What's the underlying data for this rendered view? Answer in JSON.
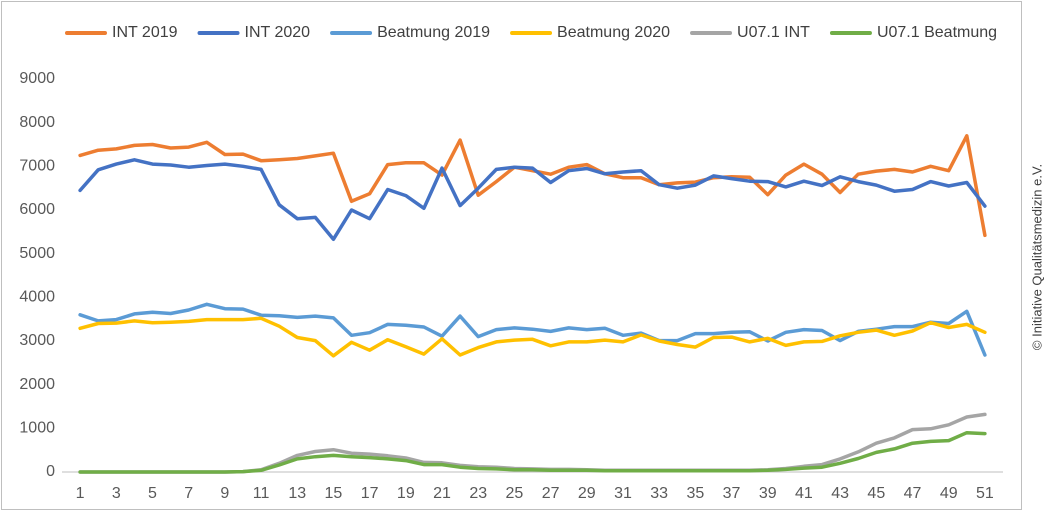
{
  "chart_data": {
    "type": "line",
    "annotation": "© Initiative Qualitätsmedizin e.V.",
    "x": [
      1,
      2,
      3,
      4,
      5,
      6,
      7,
      8,
      9,
      10,
      11,
      12,
      13,
      14,
      15,
      16,
      17,
      18,
      19,
      20,
      21,
      22,
      23,
      24,
      25,
      26,
      27,
      28,
      29,
      30,
      31,
      32,
      33,
      34,
      35,
      36,
      37,
      38,
      39,
      40,
      41,
      42,
      43,
      44,
      45,
      46,
      47,
      48,
      49,
      50,
      51
    ],
    "xlim": [
      0,
      52
    ],
    "xticks": [
      1,
      3,
      5,
      7,
      9,
      11,
      13,
      15,
      17,
      19,
      21,
      23,
      25,
      27,
      29,
      31,
      33,
      35,
      37,
      39,
      41,
      43,
      45,
      47,
      49,
      51
    ],
    "ylim": [
      0,
      9000
    ],
    "yticks": [
      0,
      1000,
      2000,
      3000,
      4000,
      5000,
      6000,
      7000,
      8000,
      9000
    ],
    "grid": false,
    "legend": "top",
    "series": [
      {
        "name": "INT 2019",
        "color": "#ED7D31",
        "values": [
          7250,
          7370,
          7400,
          7480,
          7500,
          7420,
          7440,
          7550,
          7270,
          7280,
          7130,
          7150,
          7180,
          7240,
          7300,
          6200,
          6370,
          7040,
          7080,
          7080,
          6800,
          7600,
          6340,
          6650,
          6980,
          6900,
          6820,
          6980,
          7040,
          6830,
          6740,
          6740,
          6580,
          6620,
          6640,
          6740,
          6760,
          6750,
          6350,
          6800,
          7050,
          6820,
          6400,
          6820,
          6890,
          6930,
          6870,
          7000,
          6900,
          7700,
          5420
        ]
      },
      {
        "name": "INT 2020",
        "color": "#4472C4",
        "values": [
          6450,
          6920,
          7050,
          7150,
          7050,
          7030,
          6980,
          7020,
          7050,
          7000,
          6930,
          6120,
          5800,
          5830,
          5330,
          6000,
          5800,
          6470,
          6330,
          6040,
          6960,
          6100,
          6500,
          6930,
          6980,
          6960,
          6630,
          6900,
          6950,
          6830,
          6870,
          6900,
          6580,
          6500,
          6570,
          6780,
          6720,
          6660,
          6650,
          6530,
          6660,
          6560,
          6760,
          6650,
          6570,
          6430,
          6470,
          6650,
          6550,
          6630,
          6090
        ]
      },
      {
        "name": "Beatmung 2019",
        "color": "#5B9BD5",
        "values": [
          3600,
          3460,
          3490,
          3620,
          3660,
          3630,
          3710,
          3840,
          3740,
          3730,
          3590,
          3580,
          3540,
          3570,
          3530,
          3130,
          3190,
          3380,
          3360,
          3320,
          3110,
          3570,
          3100,
          3260,
          3300,
          3270,
          3220,
          3300,
          3260,
          3290,
          3130,
          3180,
          3010,
          3010,
          3170,
          3170,
          3200,
          3210,
          3000,
          3200,
          3260,
          3240,
          3010,
          3220,
          3270,
          3330,
          3330,
          3430,
          3400,
          3680,
          2680
        ]
      },
      {
        "name": "Beatmung 2020",
        "color": "#FFC000",
        "values": [
          3290,
          3400,
          3410,
          3460,
          3420,
          3430,
          3450,
          3490,
          3490,
          3490,
          3520,
          3340,
          3080,
          3010,
          2660,
          2970,
          2790,
          3030,
          2870,
          2700,
          3050,
          2680,
          2850,
          2980,
          3020,
          3040,
          2890,
          2980,
          2980,
          3020,
          2980,
          3140,
          3000,
          2920,
          2860,
          3080,
          3090,
          2980,
          3060,
          2900,
          2980,
          2990,
          3120,
          3200,
          3250,
          3130,
          3230,
          3420,
          3310,
          3380,
          3200
        ]
      },
      {
        "name": "U07.1 INT",
        "color": "#A5A5A5",
        "values": [
          0,
          0,
          0,
          0,
          0,
          0,
          0,
          0,
          0,
          10,
          50,
          200,
          380,
          470,
          510,
          430,
          410,
          370,
          320,
          220,
          210,
          150,
          120,
          110,
          80,
          70,
          60,
          60,
          50,
          40,
          40,
          40,
          40,
          40,
          40,
          40,
          40,
          40,
          50,
          80,
          130,
          170,
          300,
          460,
          660,
          780,
          970,
          990,
          1080,
          1260,
          1320
        ]
      },
      {
        "name": "U07.1 Beatmung",
        "color": "#70AD47",
        "values": [
          0,
          0,
          0,
          0,
          0,
          0,
          0,
          0,
          0,
          10,
          40,
          160,
          300,
          350,
          380,
          350,
          330,
          300,
          260,
          170,
          170,
          110,
          80,
          70,
          50,
          50,
          40,
          40,
          40,
          30,
          30,
          30,
          30,
          30,
          30,
          30,
          30,
          30,
          40,
          60,
          90,
          110,
          200,
          310,
          450,
          530,
          660,
          700,
          720,
          900,
          880
        ]
      }
    ]
  }
}
